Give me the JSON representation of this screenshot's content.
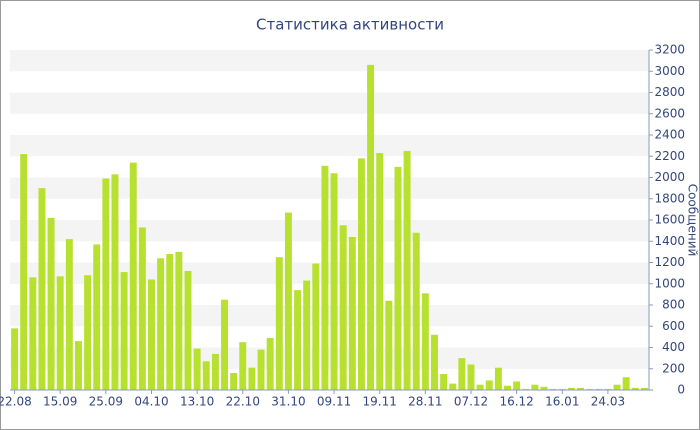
{
  "chart_data": {
    "type": "bar",
    "title": "Статистика активности",
    "y_axis_label": "Сообщений",
    "categories": [
      "22.08",
      null,
      null,
      null,
      null,
      "15.09",
      null,
      null,
      null,
      null,
      "25.09",
      null,
      null,
      null,
      null,
      "04.10",
      null,
      null,
      null,
      null,
      "13.10",
      null,
      null,
      null,
      null,
      "22.10",
      null,
      null,
      null,
      null,
      "31.10",
      null,
      null,
      null,
      null,
      "09.11",
      null,
      null,
      null,
      null,
      "19.11",
      null,
      null,
      null,
      null,
      "28.11",
      null,
      null,
      null,
      null,
      "07.12",
      null,
      null,
      null,
      null,
      "16.12",
      null,
      null,
      null,
      null,
      "16.01",
      null,
      null,
      null,
      null,
      "24.03",
      null,
      null,
      null,
      null
    ],
    "values": [
      580,
      2220,
      1060,
      1900,
      1620,
      1070,
      1420,
      460,
      1080,
      1370,
      1990,
      2030,
      1110,
      2140,
      1530,
      1040,
      1240,
      1280,
      1300,
      1120,
      390,
      270,
      340,
      850,
      160,
      450,
      210,
      380,
      490,
      1250,
      1670,
      940,
      1030,
      1190,
      2110,
      2040,
      1550,
      1440,
      2180,
      3060,
      2230,
      840,
      2100,
      2250,
      1480,
      910,
      520,
      150,
      60,
      300,
      240,
      50,
      90,
      210,
      40,
      80,
      10,
      50,
      30,
      10,
      10,
      20,
      20,
      10,
      10,
      10,
      50,
      120,
      20,
      20
    ],
    "color": "#b8e02e",
    "ylim": [
      0,
      3200
    ],
    "yticks": [
      0,
      200,
      400,
      600,
      800,
      1000,
      1200,
      1400,
      1600,
      1800,
      2000,
      2200,
      2400,
      2600,
      2800,
      3000,
      3200
    ],
    "grid": true
  }
}
